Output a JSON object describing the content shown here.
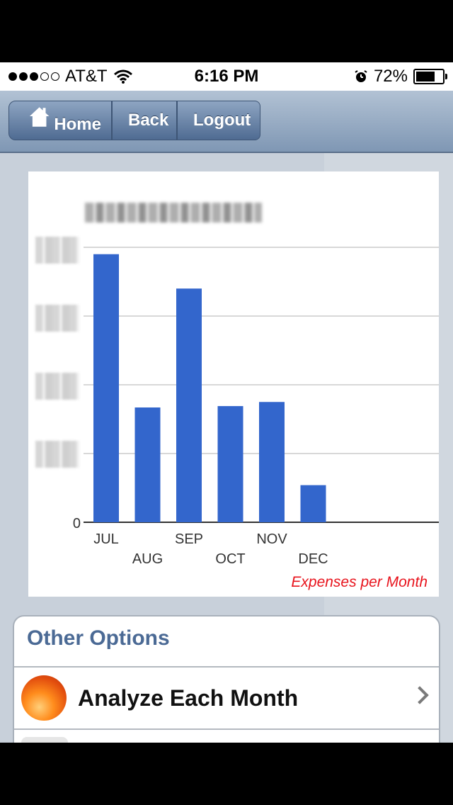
{
  "status_bar": {
    "carrier": "AT&T",
    "time": "6:16 PM",
    "battery": "72%",
    "battery_level": 0.72
  },
  "nav": {
    "home_label": "Home",
    "back_label": "Back",
    "logout_label": "Logout"
  },
  "chart_data": {
    "type": "bar",
    "title": "",
    "categories": [
      "JUL",
      "AUG",
      "SEP",
      "OCT",
      "NOV",
      "DEC"
    ],
    "values": [
      3.9,
      1.67,
      3.4,
      1.69,
      1.75,
      0.54
    ],
    "ylim": [
      0,
      4
    ],
    "y_tick_labels": [
      "0"
    ],
    "legend": "Expenses per Month",
    "legend_position": "bottom-right",
    "grid": true,
    "bar_color": "#3366cc",
    "legend_color": "#e8131c"
  },
  "options": {
    "header": "Other Options",
    "items": [
      {
        "label": "Analyze Each Month",
        "icon": "orange-orb-icon"
      }
    ]
  }
}
